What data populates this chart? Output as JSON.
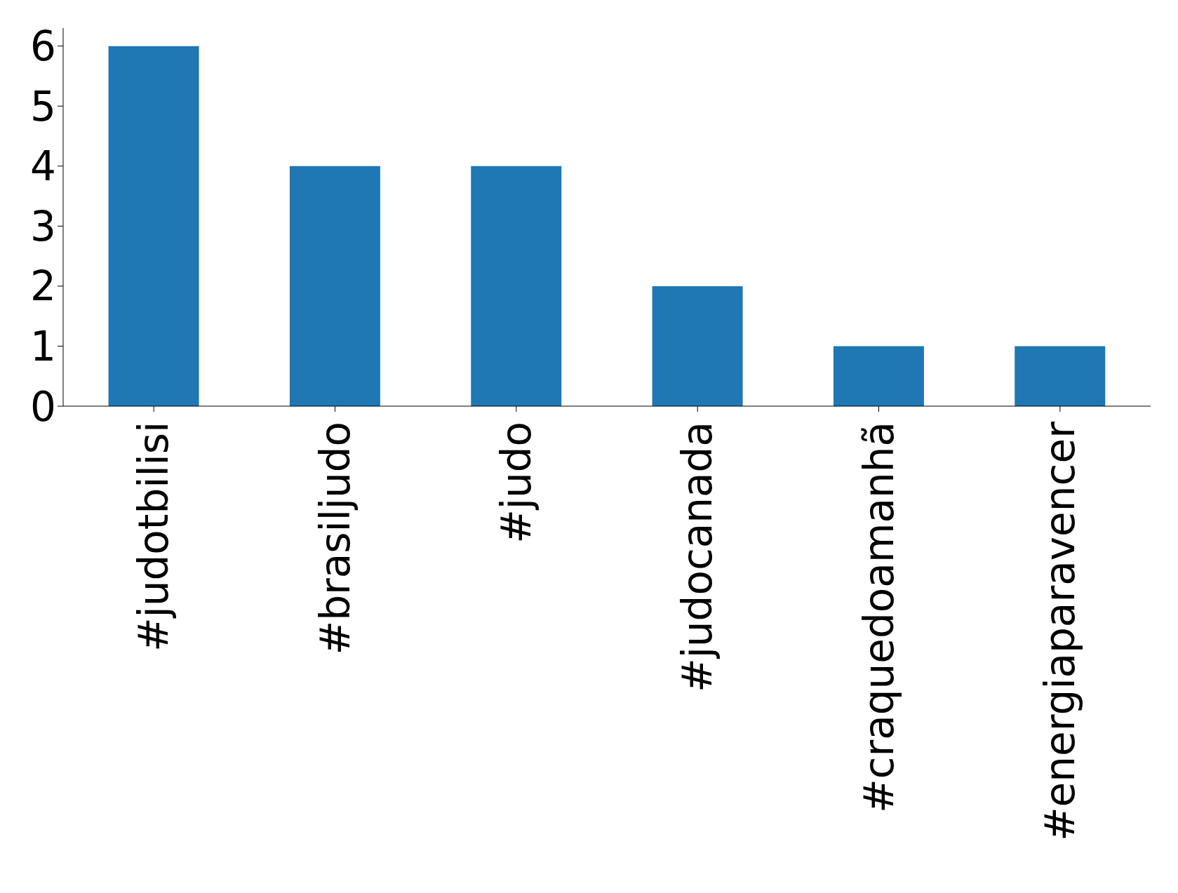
{
  "chart_data": {
    "type": "bar",
    "categories": [
      "#judotbilisi",
      "#brasiljudo",
      "#judo",
      "#judocanada",
      "#craquedoamanhã",
      "#energiaparavencer"
    ],
    "values": [
      6,
      4,
      4,
      2,
      1,
      1
    ],
    "color": "#1f77b4",
    "ylim": [
      0,
      6.3
    ],
    "yticks": [
      0,
      1,
      2,
      3,
      4,
      5,
      6
    ],
    "grid": false,
    "legend": false
  }
}
